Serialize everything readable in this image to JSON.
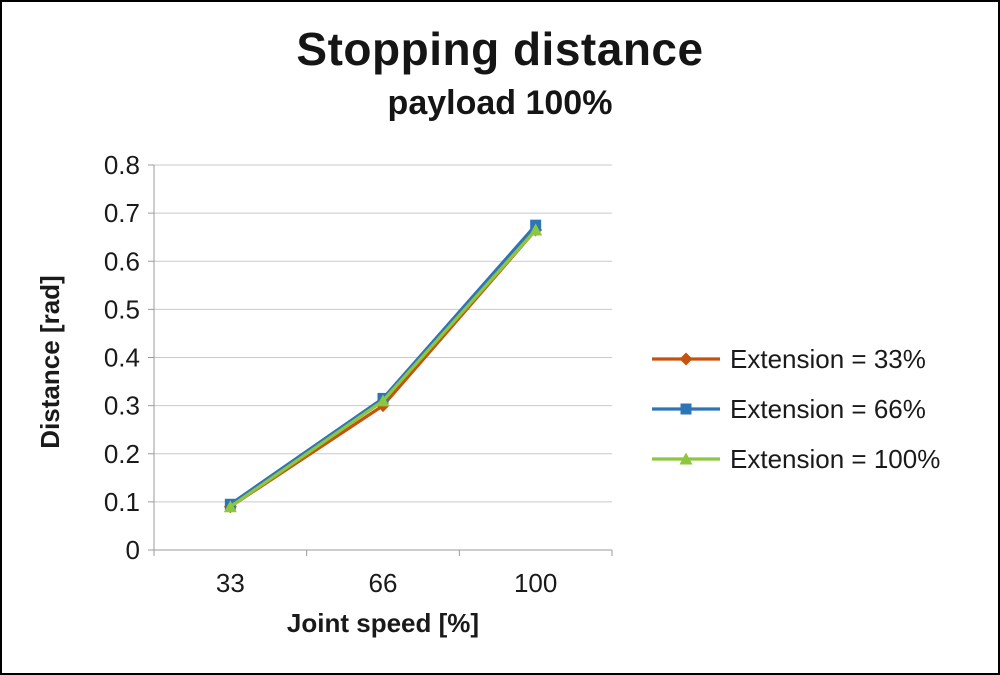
{
  "chart_data": {
    "type": "line",
    "title": "Stopping distance",
    "subtitle": "payload 100%",
    "xlabel": "Joint speed [%]",
    "ylabel": "Distance [rad]",
    "categories": [
      "33",
      "66",
      "100"
    ],
    "series": [
      {
        "name": "Extension = 33%",
        "values": [
          0.09,
          0.3,
          0.665
        ],
        "color": "#C5530E",
        "marker": "diamond"
      },
      {
        "name": "Extension = 66%",
        "values": [
          0.095,
          0.315,
          0.675
        ],
        "color": "#2E75B6",
        "marker": "square"
      },
      {
        "name": "Extension = 100%",
        "values": [
          0.09,
          0.31,
          0.665
        ],
        "color": "#8DC63F",
        "marker": "triangle"
      }
    ],
    "ylim": [
      0,
      0.8
    ],
    "ytick_step": 0.1,
    "grid": true,
    "legend_position": "right",
    "grid_color": "#C9C9C9",
    "axis_color": "#9B9B9B",
    "text_color": "#1a1a1a"
  }
}
